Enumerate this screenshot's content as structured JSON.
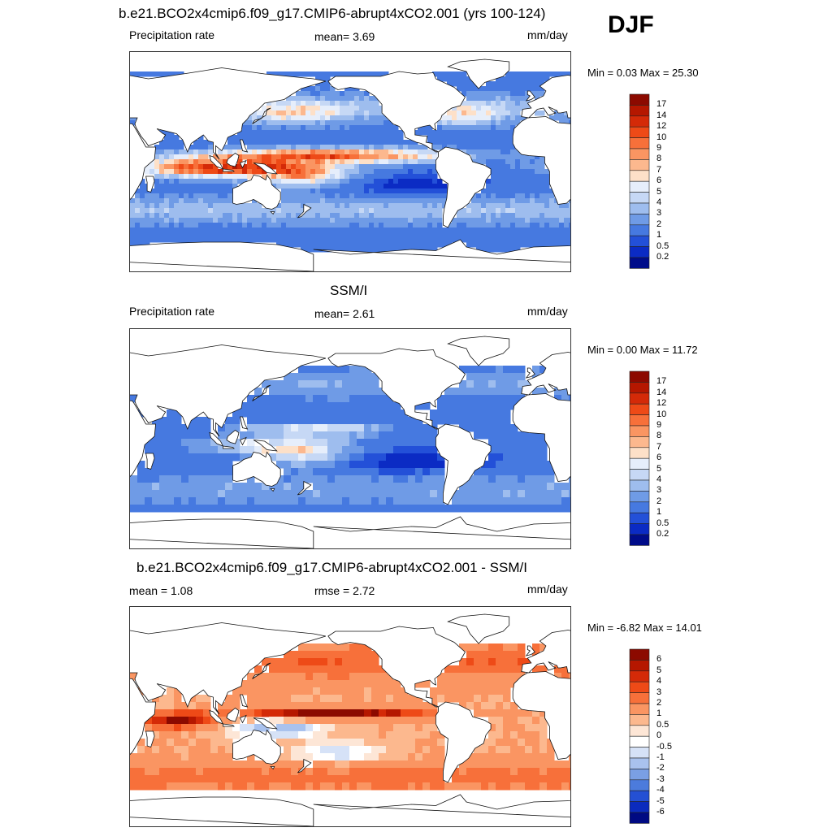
{
  "season": "DJF",
  "panels": [
    {
      "title": "b.e21.BCO2x4cmip6.f09_g17.CMIP6-abrupt4xCO2.001 (yrs 100-124)",
      "left_label": "Precipitation rate",
      "center_label": "mean=   3.69",
      "units": "mm/day",
      "minmax": "Min =   0.03 Max =  25.30",
      "kind": "model",
      "colorbar": {
        "labels": [
          "17",
          "14",
          "12",
          "10",
          "9",
          "8",
          "7",
          "6",
          "5",
          "4",
          "3",
          "2",
          "1",
          "0.5",
          "0.2"
        ],
        "colors": [
          "#8c0a00",
          "#b51700",
          "#d42a08",
          "#ee4a17",
          "#f7703a",
          "#fa9562",
          "#fcb88e",
          "#fde0c8",
          "#e6eefb",
          "#c6d8f5",
          "#9ebdee",
          "#6f9be6",
          "#4679e0",
          "#2350d8",
          "#0b2bc4",
          "#000c8a"
        ]
      }
    },
    {
      "title": "SSM/I",
      "left_label": "Precipitation rate",
      "center_label": "mean=   2.61",
      "units": "mm/day",
      "minmax": "Min =   0.00 Max =  11.72",
      "kind": "obs",
      "colorbar": {
        "labels": [
          "17",
          "14",
          "12",
          "10",
          "9",
          "8",
          "7",
          "6",
          "5",
          "4",
          "3",
          "2",
          "1",
          "0.5",
          "0.2"
        ],
        "colors": [
          "#8c0a00",
          "#b51700",
          "#d42a08",
          "#ee4a17",
          "#f7703a",
          "#fa9562",
          "#fcb88e",
          "#fde0c8",
          "#e6eefb",
          "#c6d8f5",
          "#9ebdee",
          "#6f9be6",
          "#4679e0",
          "#2350d8",
          "#0b2bc4",
          "#000c8a"
        ]
      }
    },
    {
      "title": "b.e21.BCO2x4cmip6.f09_g17.CMIP6-abrupt4xCO2.001 - SSM/I",
      "left_label": "mean =   1.08",
      "center_label": "rmse =   2.72",
      "units": "mm/day",
      "minmax": "Min =  -6.82 Max =  14.01",
      "kind": "diff",
      "colorbar": {
        "labels": [
          "6",
          "5",
          "4",
          "3",
          "2",
          "1",
          "0.5",
          "0",
          "-0.5",
          "-1",
          "-2",
          "-3",
          "-4",
          "-5",
          "-6"
        ],
        "colors": [
          "#8c0a00",
          "#b51700",
          "#d42a08",
          "#ee4a17",
          "#f7703a",
          "#fa9562",
          "#fcb88e",
          "#fde6d6",
          "#ffffff",
          "#d6e2f7",
          "#a9c2ee",
          "#7a9fe4",
          "#4c7bdc",
          "#2450d4",
          "#0b2bbd",
          "#000a82"
        ]
      }
    }
  ]
}
